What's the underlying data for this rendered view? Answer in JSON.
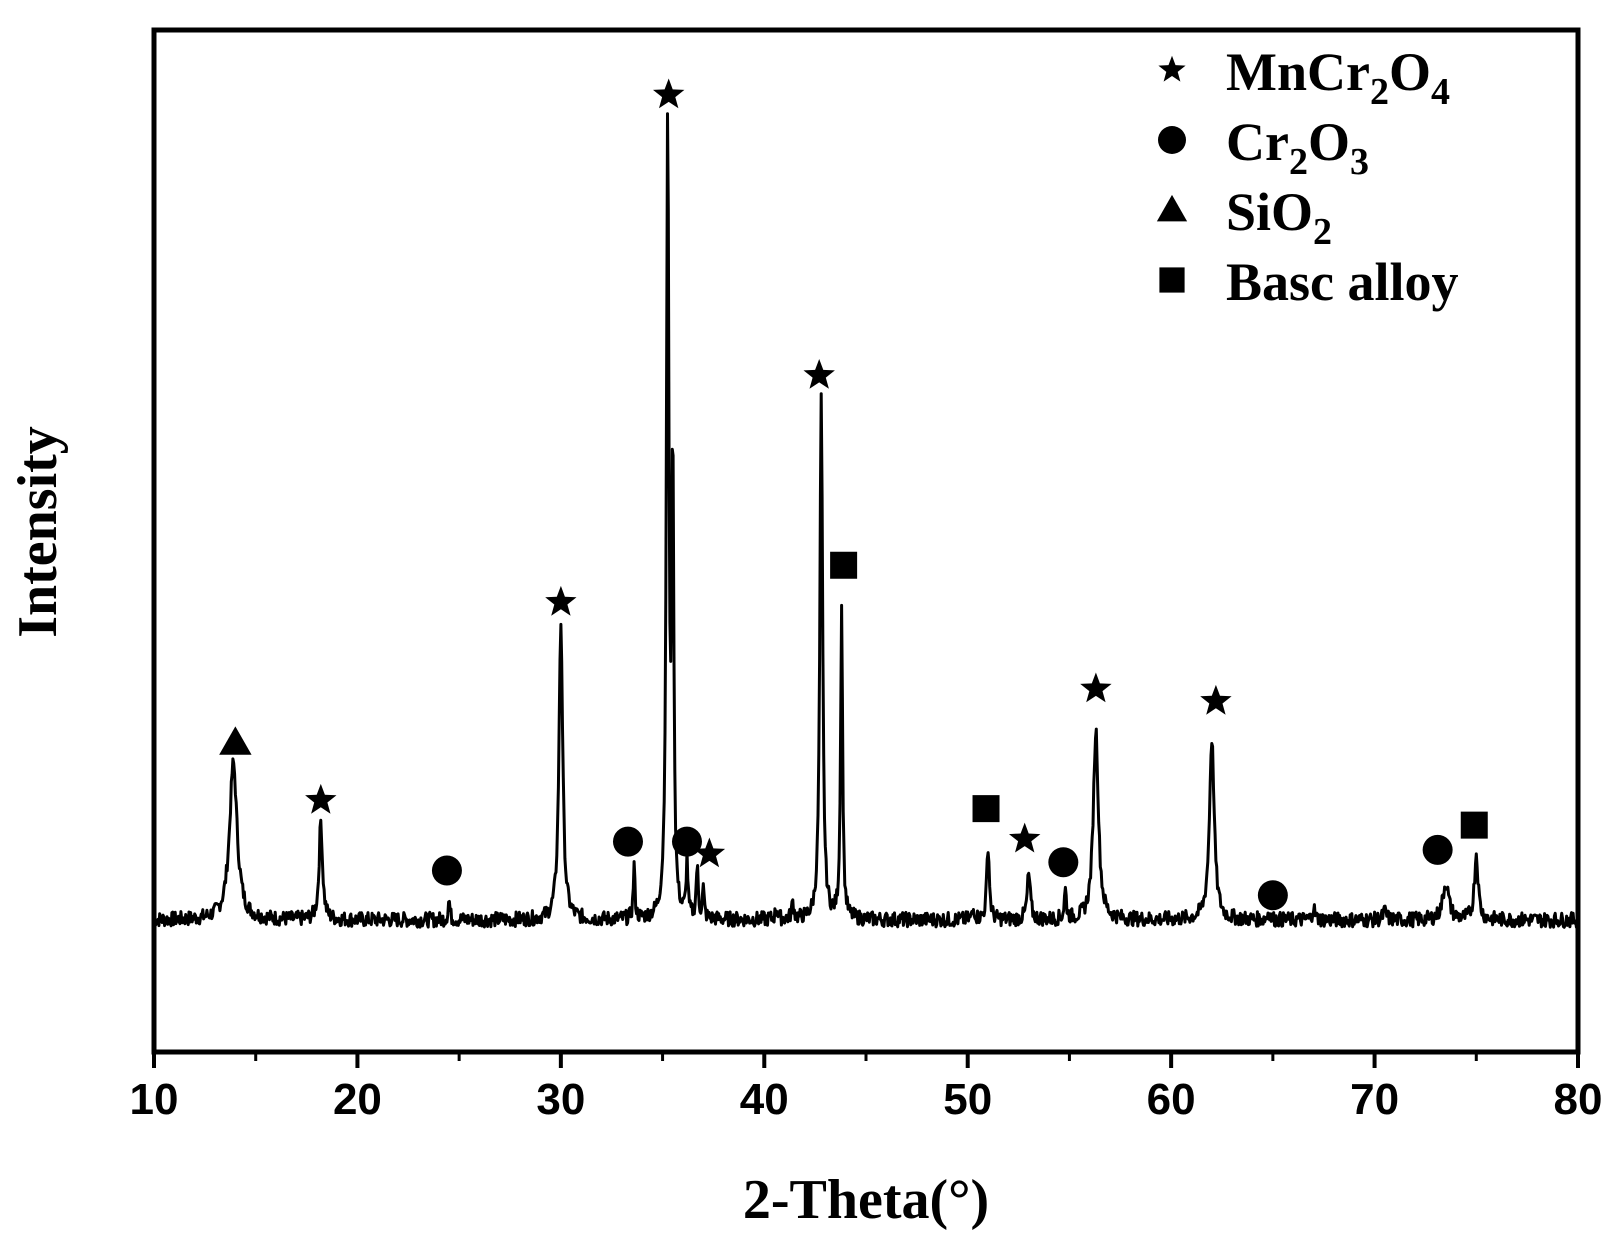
{
  "chart_data": {
    "type": "line",
    "title": "",
    "xlabel": "2-Theta(°)",
    "ylabel": "Intensity",
    "xlim": [
      10,
      80
    ],
    "ylim": [
      -0.18,
      1.0
    ],
    "x_ticks": [
      10,
      20,
      30,
      40,
      50,
      60,
      70,
      80
    ],
    "y_ticks_shown": false,
    "grid": false,
    "legend_position": "top-right",
    "legend": [
      {
        "marker": "star",
        "label": "MnCr",
        "sub1": "2",
        "label_mid": "O",
        "sub2": "4"
      },
      {
        "marker": "circle",
        "label": "Cr",
        "sub1": "2",
        "label_mid": "O",
        "sub2": "3"
      },
      {
        "marker": "triangle",
        "label": "SiO",
        "sub1": "2",
        "label_mid": "",
        "sub2": ""
      },
      {
        "marker": "square",
        "label": "Basc alloy",
        "sub1": "",
        "label_mid": "",
        "sub2": ""
      }
    ],
    "baseline": 0.0,
    "series": [
      {
        "peaks": [
          {
            "x": 13.9,
            "height": 0.19,
            "width": 0.45
          },
          {
            "x": 18.2,
            "height": 0.12,
            "width": 0.2
          },
          {
            "x": 24.5,
            "height": 0.025,
            "width": 0.1
          },
          {
            "x": 30.0,
            "height": 0.36,
            "width": 0.22
          },
          {
            "x": 33.6,
            "height": 0.065,
            "width": 0.1
          },
          {
            "x": 35.25,
            "height": 0.97,
            "width": 0.14
          },
          {
            "x": 35.5,
            "height": 0.55,
            "width": 0.12
          },
          {
            "x": 36.2,
            "height": 0.07,
            "width": 0.1
          },
          {
            "x": 36.7,
            "height": 0.06,
            "width": 0.12
          },
          {
            "x": 37.0,
            "height": 0.035,
            "width": 0.1
          },
          {
            "x": 40.6,
            "height": 0.012,
            "width": 0.15
          },
          {
            "x": 41.4,
            "height": 0.02,
            "width": 0.12
          },
          {
            "x": 42.8,
            "height": 0.63,
            "width": 0.16
          },
          {
            "x": 43.8,
            "height": 0.38,
            "width": 0.12
          },
          {
            "x": 50.3,
            "height": 0.012,
            "width": 0.15
          },
          {
            "x": 51.0,
            "height": 0.09,
            "width": 0.15
          },
          {
            "x": 53.0,
            "height": 0.055,
            "width": 0.18
          },
          {
            "x": 54.8,
            "height": 0.035,
            "width": 0.12
          },
          {
            "x": 56.3,
            "height": 0.23,
            "width": 0.3
          },
          {
            "x": 62.0,
            "height": 0.22,
            "width": 0.28
          },
          {
            "x": 64.8,
            "height": 0.012,
            "width": 0.12
          },
          {
            "x": 67.0,
            "height": 0.015,
            "width": 0.15
          },
          {
            "x": 70.5,
            "height": 0.01,
            "width": 0.2
          },
          {
            "x": 73.5,
            "height": 0.045,
            "width": 0.35
          },
          {
            "x": 75.0,
            "height": 0.08,
            "width": 0.22
          }
        ]
      }
    ],
    "markers": [
      {
        "type": "triangle",
        "x": 14.0,
        "y": 0.215
      },
      {
        "type": "star",
        "x": 18.2,
        "y": 0.145
      },
      {
        "type": "circle",
        "x": 24.4,
        "y": 0.06
      },
      {
        "type": "star",
        "x": 30.0,
        "y": 0.385
      },
      {
        "type": "circle",
        "x": 33.3,
        "y": 0.095
      },
      {
        "type": "star",
        "x": 35.3,
        "y": 1.0
      },
      {
        "type": "circle",
        "x": 36.2,
        "y": 0.095
      },
      {
        "type": "star",
        "x": 37.3,
        "y": 0.08
      },
      {
        "type": "star",
        "x": 42.7,
        "y": 0.66
      },
      {
        "type": "square",
        "x": 43.9,
        "y": 0.43
      },
      {
        "type": "square",
        "x": 50.9,
        "y": 0.135
      },
      {
        "type": "star",
        "x": 52.8,
        "y": 0.098
      },
      {
        "type": "circle",
        "x": 54.7,
        "y": 0.07
      },
      {
        "type": "star",
        "x": 56.3,
        "y": 0.28
      },
      {
        "type": "star",
        "x": 62.2,
        "y": 0.265
      },
      {
        "type": "circle",
        "x": 65.0,
        "y": 0.03
      },
      {
        "type": "circle",
        "x": 73.1,
        "y": 0.085
      },
      {
        "type": "square",
        "x": 74.9,
        "y": 0.115
      }
    ]
  }
}
